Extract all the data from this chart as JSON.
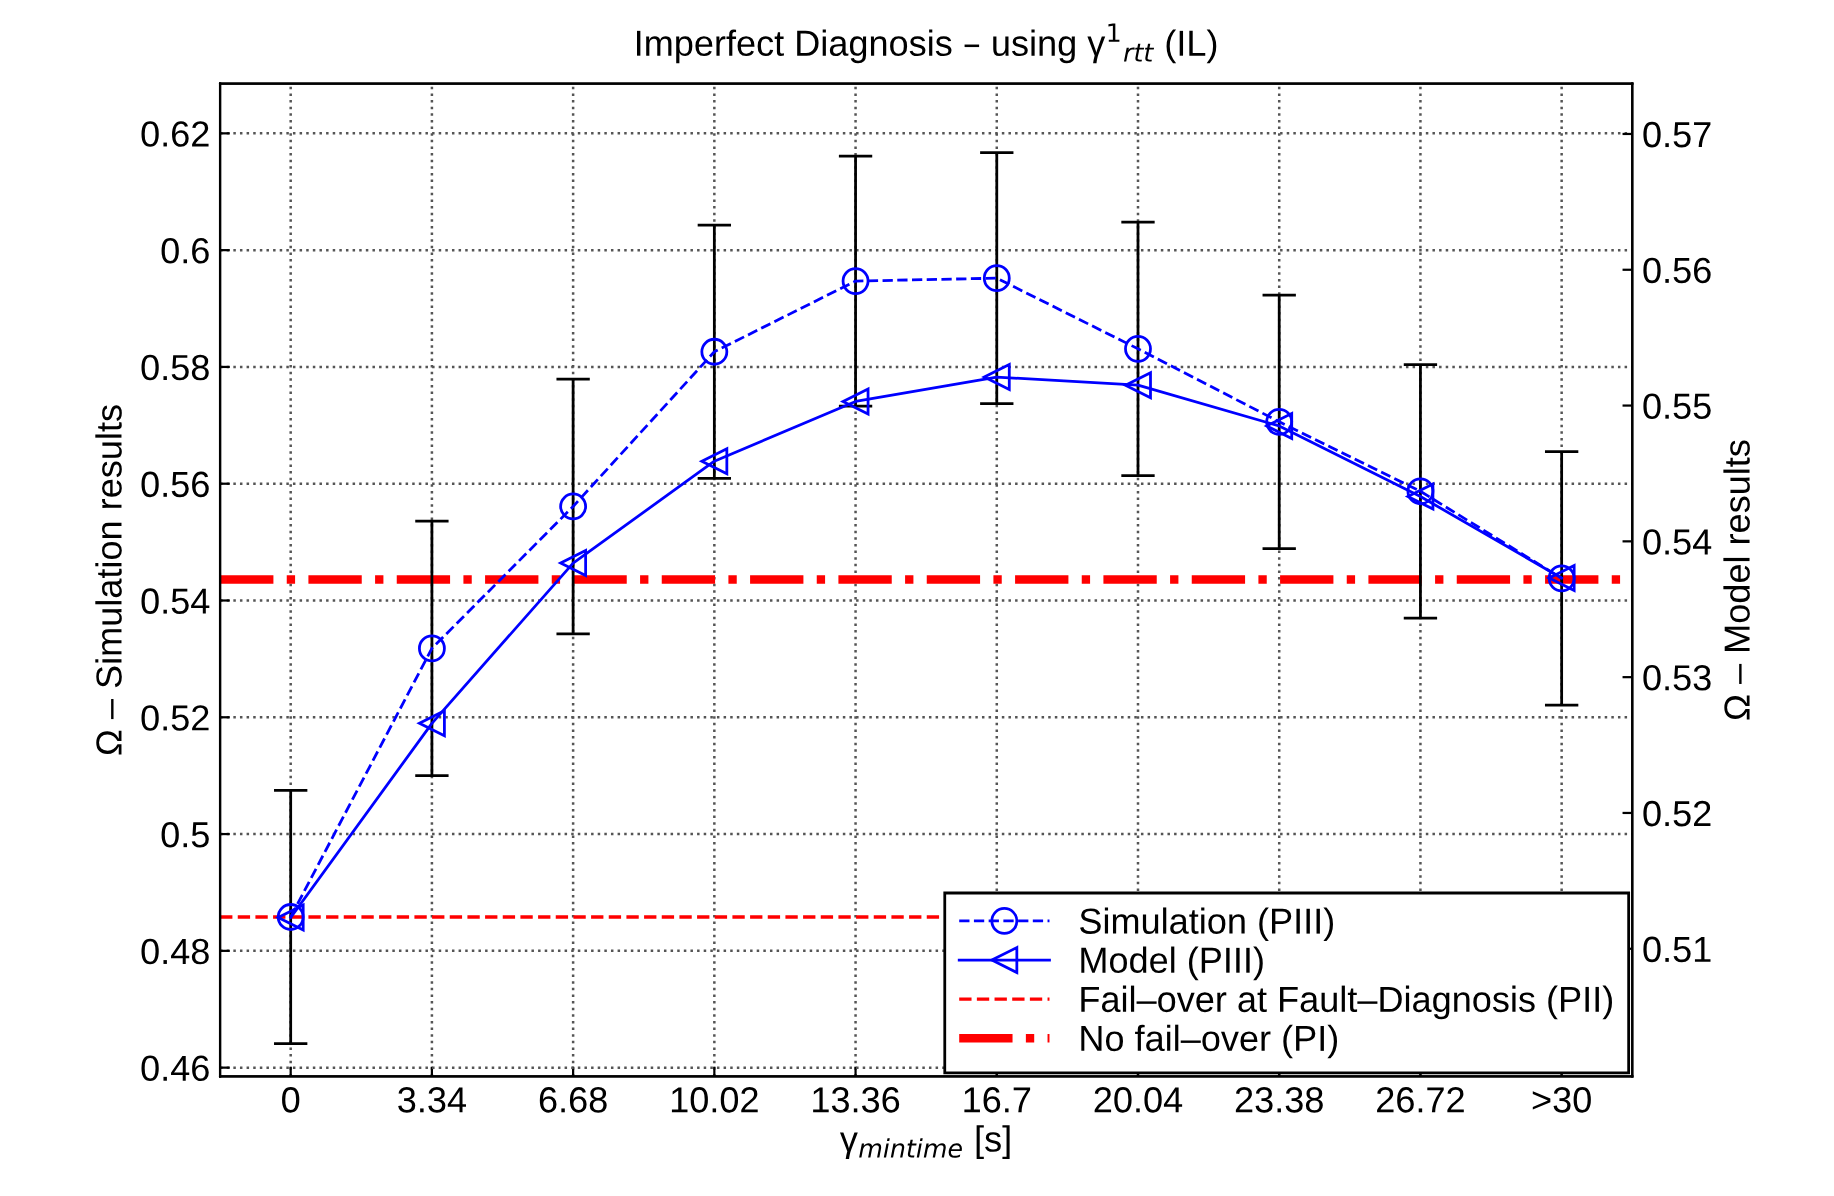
{
  "chart_data": {
    "type": "line",
    "title": "Imperfect Diagnosis – using γ$^{1}$$_{rtt}$ (IL)",
    "xlabel": "γ$_{mintime}$ [s]",
    "ylabel": "Ω – Simulation results",
    "y2label": "Ω – Model results",
    "categories": [
      "0",
      "3.34",
      "6.68",
      "10.02",
      "13.36",
      "16.7",
      "20.04",
      "23.38",
      "26.72",
      ">30"
    ],
    "series": [
      {
        "name": "Simulation (PIII)",
        "color": "#0000ff",
        "marker": "circle",
        "line_style": "dashed",
        "values": [
          0.4858,
          0.5318,
          0.5561,
          0.5826,
          0.5947,
          0.5952,
          0.5831,
          0.5706,
          0.5587,
          0.5438
        ],
        "errors": [
          0.0217,
          0.0218,
          0.0218,
          0.0217,
          0.0214,
          0.0215,
          0.0217,
          0.0217,
          0.0217,
          0.0217
        ]
      },
      {
        "name": "Model (PIII)",
        "color": "#0000ff",
        "marker": "triangle",
        "line_style": "solid",
        "axis": "y2",
        "values": [
          0.5123,
          0.5266,
          0.5384,
          0.5459,
          0.5503,
          0.5521,
          0.5515,
          0.5485,
          0.5433,
          0.5373
        ]
      }
    ],
    "ref_lines": [
      {
        "axis": "y",
        "value": 0.4858,
        "label": "Fail–over at Fault–Diagnosis (PII)",
        "color": "#ff0000",
        "line_style": "dashed"
      },
      {
        "axis": "y",
        "value": 0.5436,
        "label": "No fail–over (PI)",
        "color": "#ff0000",
        "line_style": "dashdot"
      }
    ],
    "ylim": [
      0.4585,
      0.6285
    ],
    "yticks": [
      0.46,
      0.48,
      0.5,
      0.52,
      0.54,
      0.56,
      0.58,
      0.6,
      0.62
    ],
    "y2lim": [
      0.5006,
      0.5737
    ],
    "y2ticks": [
      0.51,
      0.52,
      0.53,
      0.54,
      0.55,
      0.56,
      0.57
    ],
    "grid": true,
    "legend": "bottom right"
  }
}
